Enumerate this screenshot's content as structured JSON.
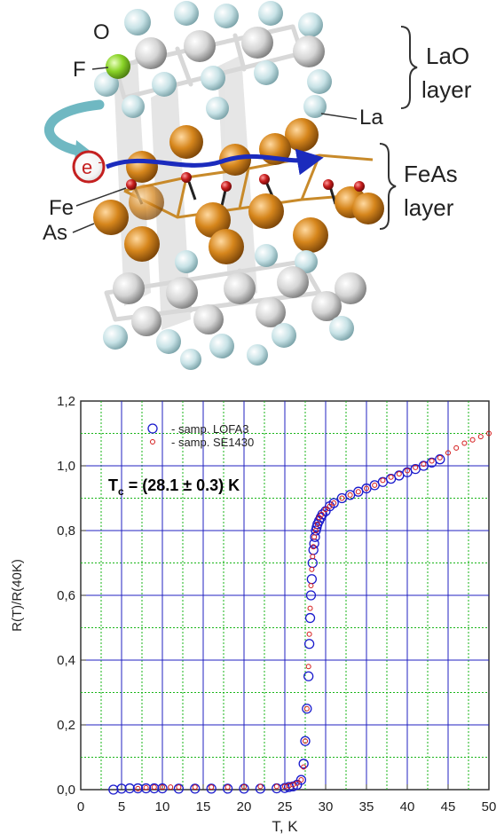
{
  "structure": {
    "labels": {
      "O": "O",
      "F": "F",
      "electron": "e",
      "electron_sign": "-",
      "Fe": "Fe",
      "As": "As",
      "La": "La",
      "LaO_layer_1": "LaO",
      "LaO_layer_2": "layer",
      "FeAs_layer_1": "FeAs",
      "FeAs_layer_2": "layer"
    },
    "colors": {
      "La": "#c7e2e6",
      "O": "#d4d4d4",
      "Fe": "#c61d1d",
      "As": "#d6861c",
      "F": "#8ad428",
      "arrow": "#1b2bbd",
      "electron": "#c42020"
    }
  },
  "chart_data": {
    "type": "scatter",
    "xlabel": "T, K",
    "ylabel": "R(T)/R(40K)",
    "xlim": [
      0,
      50
    ],
    "ylim": [
      0.0,
      1.2
    ],
    "xticks": [
      "0",
      "5",
      "10",
      "15",
      "20",
      "25",
      "30",
      "35",
      "40",
      "45",
      "50"
    ],
    "yticks": [
      "0,0",
      "0,2",
      "0,4",
      "0,6",
      "0,8",
      "1,0",
      "1,2"
    ],
    "annotation": {
      "main": "T",
      "sub": "c",
      "rest": " = (28.1 ± 0.3) K"
    },
    "legend": {
      "placement": "top-left"
    },
    "grid": true,
    "series": [
      {
        "name": "- samp. LOFA3",
        "color": "#1a1acc",
        "marker": "circle-open",
        "x": [
          4,
          5,
          6,
          7,
          8,
          9,
          10,
          12,
          14,
          16,
          18,
          20,
          22,
          24,
          25,
          25.5,
          26,
          26.5,
          27,
          27.3,
          27.5,
          27.7,
          27.9,
          28.0,
          28.1,
          28.2,
          28.3,
          28.4,
          28.5,
          28.6,
          28.7,
          28.8,
          28.9,
          29.0,
          29.2,
          29.4,
          29.6,
          30,
          30.5,
          31,
          32,
          33,
          34,
          35,
          36,
          37,
          38,
          39,
          40,
          41,
          42,
          43,
          44
        ],
        "y": [
          0.0,
          0.003,
          0.004,
          0.004,
          0.004,
          0.004,
          0.004,
          0.003,
          0.003,
          0.003,
          0.003,
          0.003,
          0.003,
          0.004,
          0.005,
          0.008,
          0.01,
          0.015,
          0.03,
          0.08,
          0.15,
          0.25,
          0.35,
          0.45,
          0.53,
          0.6,
          0.65,
          0.7,
          0.74,
          0.76,
          0.78,
          0.8,
          0.81,
          0.82,
          0.83,
          0.84,
          0.85,
          0.86,
          0.875,
          0.885,
          0.9,
          0.91,
          0.92,
          0.93,
          0.94,
          0.95,
          0.96,
          0.97,
          0.98,
          0.99,
          1.0,
          1.01,
          1.02
        ]
      },
      {
        "name": "- samp. SE1430",
        "color": "#d41a1a",
        "marker": "circle-open",
        "x": [
          7,
          8,
          9,
          10,
          11,
          12,
          14,
          16,
          18,
          20,
          22,
          24,
          25,
          25.5,
          26,
          26.5,
          27,
          27.3,
          27.5,
          27.7,
          27.9,
          28.0,
          28.1,
          28.2,
          28.3,
          28.4,
          28.5,
          28.6,
          28.8,
          29.0,
          29.2,
          29.5,
          30,
          30.5,
          31,
          32,
          33,
          34,
          35,
          36,
          37,
          38,
          39,
          40,
          41,
          42,
          43,
          44,
          45,
          46,
          47,
          48,
          49,
          50
        ],
        "y": [
          0.003,
          0.006,
          0.008,
          0.008,
          0.008,
          0.008,
          0.008,
          0.008,
          0.008,
          0.009,
          0.01,
          0.01,
          0.01,
          0.012,
          0.015,
          0.02,
          0.03,
          0.07,
          0.15,
          0.25,
          0.38,
          0.48,
          0.56,
          0.63,
          0.68,
          0.72,
          0.75,
          0.78,
          0.8,
          0.82,
          0.84,
          0.85,
          0.865,
          0.875,
          0.885,
          0.9,
          0.91,
          0.92,
          0.93,
          0.94,
          0.955,
          0.965,
          0.975,
          0.985,
          0.995,
          1.005,
          1.015,
          1.025,
          1.04,
          1.055,
          1.07,
          1.08,
          1.09,
          1.1
        ]
      }
    ]
  }
}
